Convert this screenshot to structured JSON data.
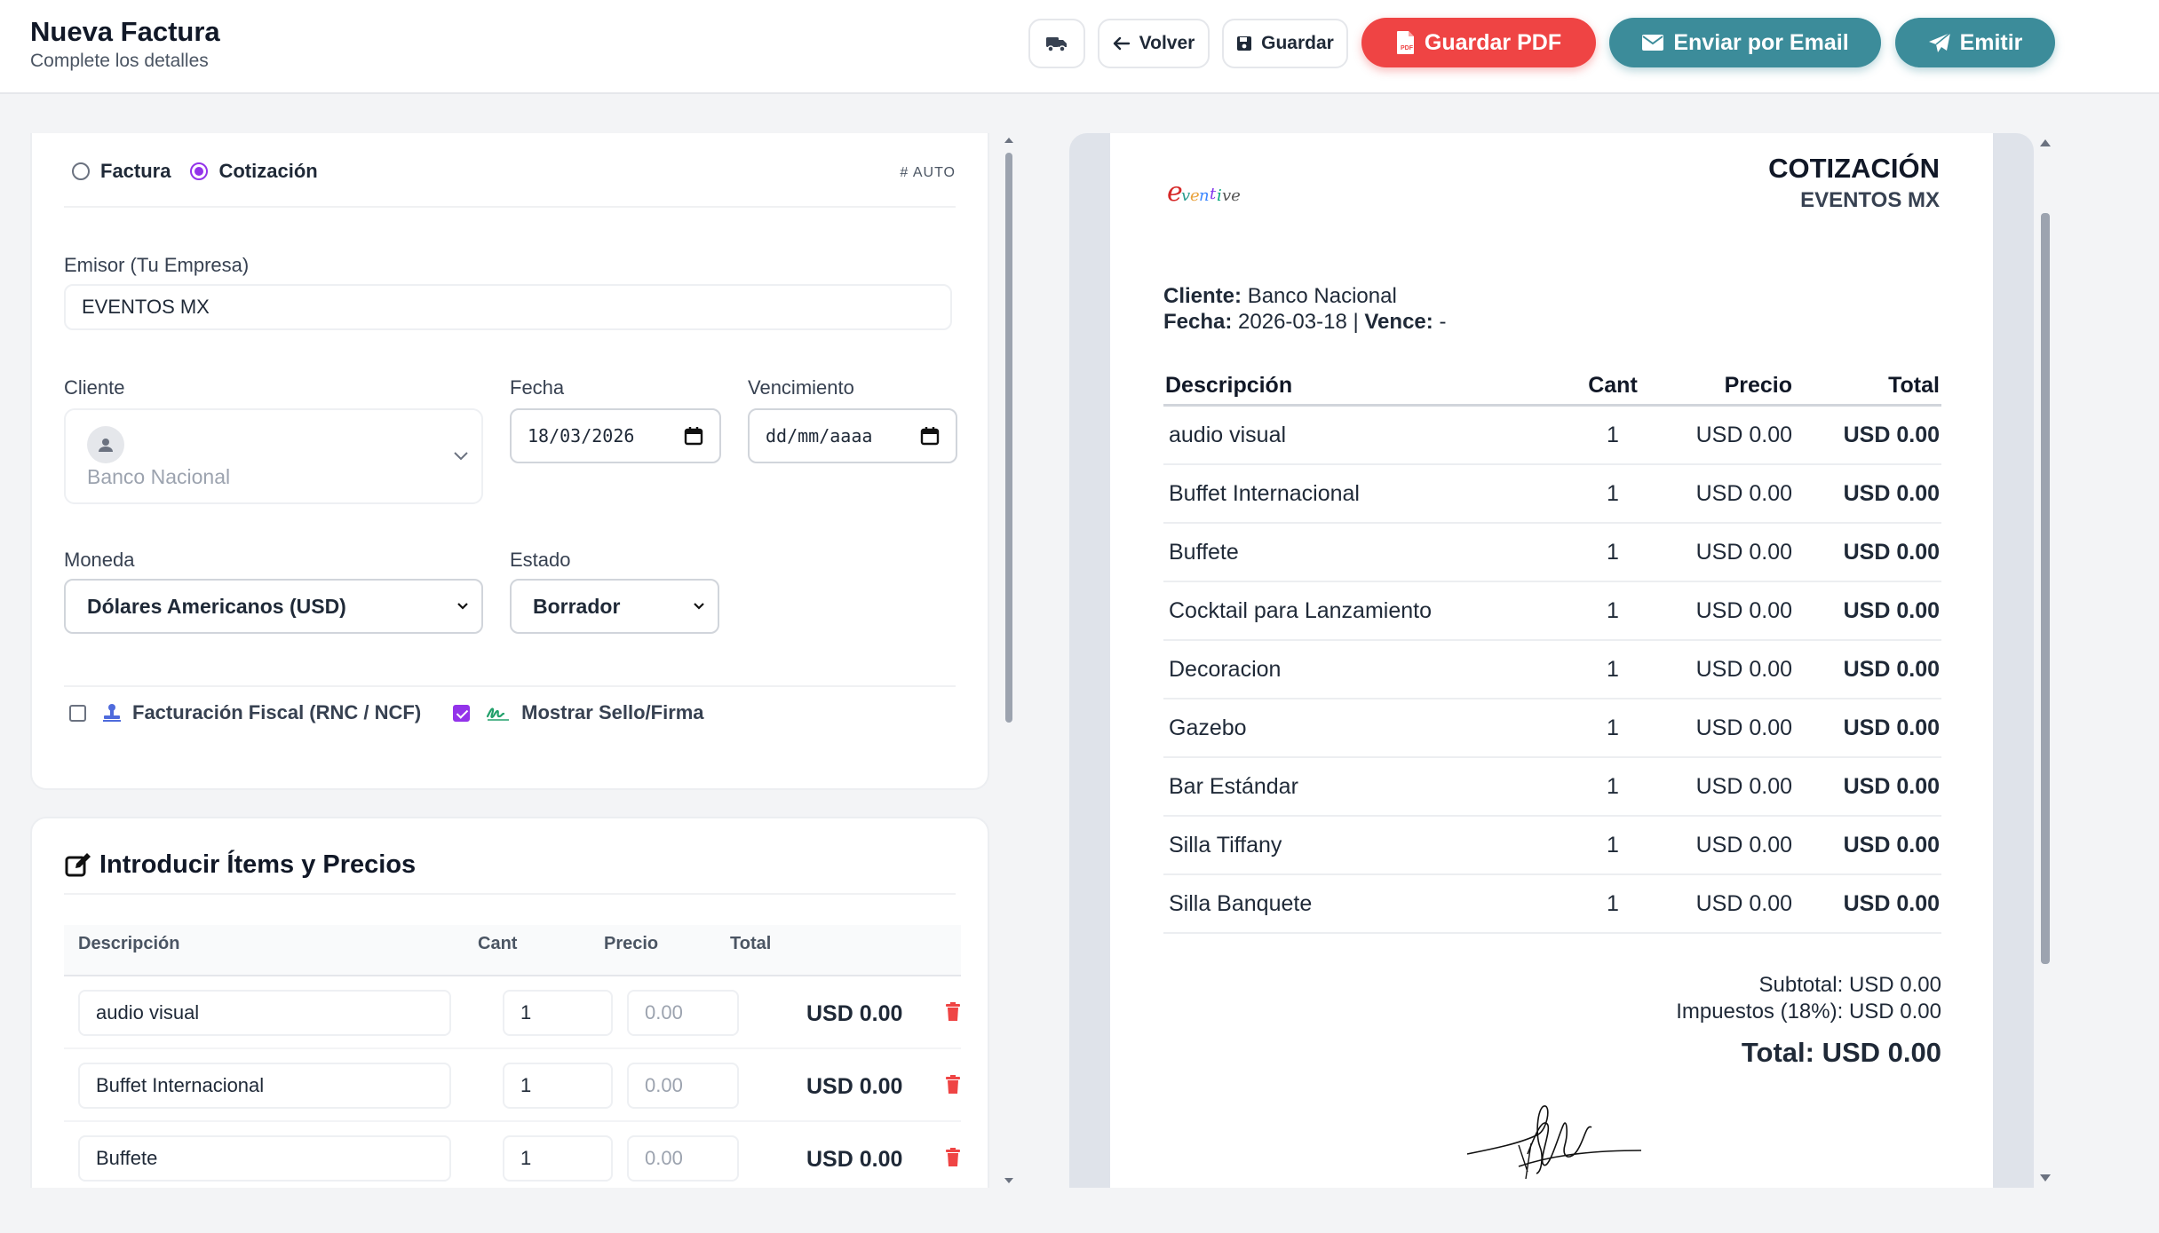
{
  "header": {
    "title": "Nueva Factura",
    "subtitle": "Complete los detalles",
    "back_label": "Volver",
    "save_label": "Guardar",
    "pdf_label": "Guardar PDF",
    "email_label": "Enviar por Email",
    "emit_label": "Emitir"
  },
  "colors": {
    "accent_purple": "#9333ea",
    "pdf_red": "#ef4444",
    "teal": "#3c8c9a",
    "delete_red": "#ef4444"
  },
  "form": {
    "doc_type_options": [
      "Factura",
      "Cotización"
    ],
    "doc_type_selected": "Cotización",
    "auto_tag": "# AUTO",
    "emisor_label": "Emisor (Tu Empresa)",
    "emisor_value": "EVENTOS MX",
    "cliente_label": "Cliente",
    "cliente_value": "Banco Nacional",
    "fecha_label": "Fecha",
    "fecha_value": "18/03/2026",
    "vencimiento_label": "Vencimiento",
    "vencimiento_placeholder": "dd/mm/aaaa",
    "moneda_label": "Moneda",
    "moneda_value": "Dólares Americanos (USD)",
    "estado_label": "Estado",
    "estado_value": "Borrador",
    "fiscal_label": "Facturación Fiscal (RNC / NCF)",
    "fiscal_checked": false,
    "sello_label": "Mostrar Sello/Firma",
    "sello_checked": true
  },
  "items_editor": {
    "title": "Introducir Ítems y Precios",
    "columns": [
      "Descripción",
      "Cant",
      "Precio",
      "Total"
    ],
    "price_placeholder": "0.00",
    "rows": [
      {
        "desc": "audio visual",
        "qty": "1",
        "total": "USD 0.00"
      },
      {
        "desc": "Buffet Internacional",
        "qty": "1",
        "total": "USD 0.00"
      },
      {
        "desc": "Buffete",
        "qty": "1",
        "total": "USD 0.00"
      }
    ]
  },
  "preview": {
    "doc_type": "COTIZACIÓN",
    "company": "EVENTOS MX",
    "logo_text": "Eventive",
    "cliente_label": "Cliente:",
    "cliente_value": "Banco Nacional",
    "fecha_label": "Fecha:",
    "fecha_value": "2026-03-18",
    "separator": "|",
    "vence_label": "Vence:",
    "vence_value": "-",
    "columns": {
      "desc": "Descripción",
      "cant": "Cant",
      "precio": "Precio",
      "total": "Total"
    },
    "rows": [
      {
        "desc": "audio visual",
        "cant": "1",
        "precio": "USD 0.00",
        "total": "USD 0.00"
      },
      {
        "desc": "Buffet Internacional",
        "cant": "1",
        "precio": "USD 0.00",
        "total": "USD 0.00"
      },
      {
        "desc": "Buffete",
        "cant": "1",
        "precio": "USD 0.00",
        "total": "USD 0.00"
      },
      {
        "desc": "Cocktail para Lanzamiento",
        "cant": "1",
        "precio": "USD 0.00",
        "total": "USD 0.00"
      },
      {
        "desc": "Decoracion",
        "cant": "1",
        "precio": "USD 0.00",
        "total": "USD 0.00"
      },
      {
        "desc": "Gazebo",
        "cant": "1",
        "precio": "USD 0.00",
        "total": "USD 0.00"
      },
      {
        "desc": "Bar Estándar",
        "cant": "1",
        "precio": "USD 0.00",
        "total": "USD 0.00"
      },
      {
        "desc": "Silla Tiffany",
        "cant": "1",
        "precio": "USD 0.00",
        "total": "USD 0.00"
      },
      {
        "desc": "Silla Banquete",
        "cant": "1",
        "precio": "USD 0.00",
        "total": "USD 0.00"
      }
    ],
    "subtotal": "Subtotal: USD 0.00",
    "taxes": "Impuestos (18%): USD 0.00",
    "total": "Total: USD 0.00"
  }
}
